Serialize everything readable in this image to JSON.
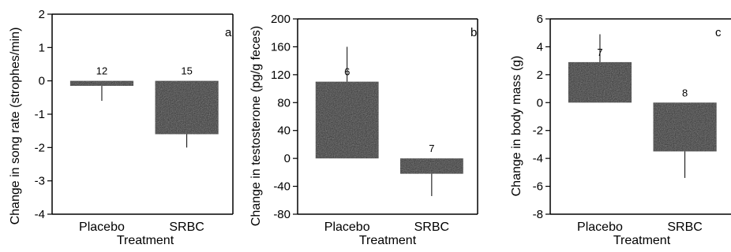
{
  "colors": {
    "bar": "#2b2b2b",
    "axis": "#000000",
    "background": "#ffffff"
  },
  "chart_data": [
    {
      "type": "bar",
      "panel_label": "a",
      "categories": [
        "Placebo",
        "SRBC"
      ],
      "values": [
        -0.15,
        -1.6
      ],
      "error": [
        0.45,
        0.4
      ],
      "n": [
        "12",
        "15"
      ],
      "xlabel": "Treatment",
      "ylabel": "Change in song rate (strophes/min)",
      "ylim": [
        -4,
        2
      ],
      "yticks": [
        -4,
        -3,
        -2,
        -1,
        0,
        1,
        2
      ],
      "ytick_labels": [
        "-4",
        "-3",
        "-2",
        "-1",
        "0",
        "1",
        "2"
      ]
    },
    {
      "type": "bar",
      "panel_label": "b",
      "categories": [
        "Placebo",
        "SRBC"
      ],
      "values": [
        110,
        -22
      ],
      "error": [
        50,
        32
      ],
      "n": [
        "6",
        "7"
      ],
      "xlabel": "Treatment",
      "ylabel": "Change in testosterone (pg/g feces)",
      "ylim": [
        -80,
        200
      ],
      "yticks": [
        -80,
        -40,
        0,
        40,
        80,
        120,
        160,
        200
      ],
      "ytick_labels": [
        "-80",
        "-40",
        "0",
        "40",
        "80",
        "120",
        "160",
        "200"
      ]
    },
    {
      "type": "bar",
      "panel_label": "c",
      "categories": [
        "Placebo",
        "SRBC"
      ],
      "values": [
        2.9,
        -3.5
      ],
      "error": [
        2.0,
        1.9
      ],
      "n": [
        "7",
        "8"
      ],
      "xlabel": "Treatment",
      "ylabel": "Change in body mass (g)",
      "ylim": [
        -8,
        6
      ],
      "yticks": [
        -8,
        -6,
        -4,
        -2,
        0,
        2,
        4,
        6
      ],
      "ytick_labels": [
        "-8",
        "-6",
        "-4",
        "-2",
        "0",
        "2",
        "4",
        "6"
      ]
    }
  ]
}
